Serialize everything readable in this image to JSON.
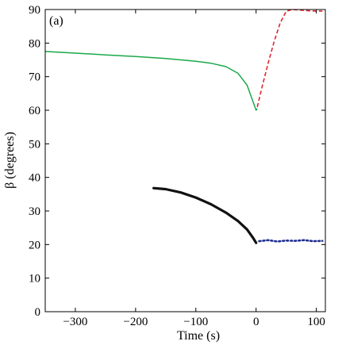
{
  "chart_data": {
    "type": "line",
    "panel_label": "(a)",
    "xlabel": "Time (s)",
    "ylabel": "β (degrees)",
    "xlim": [
      -350,
      115
    ],
    "ylim": [
      0,
      90
    ],
    "xticks": [
      -300,
      -200,
      -100,
      0,
      100
    ],
    "yticks": [
      0,
      10,
      20,
      30,
      40,
      50,
      60,
      70,
      80,
      90
    ],
    "grid": false,
    "series": [
      {
        "color": "#1aa84a",
        "style": "solid",
        "x": [
          -350,
          -300,
          -250,
          -200,
          -150,
          -100,
          -75,
          -50,
          -30,
          -15,
          -5,
          0,
          2
        ],
        "y": [
          77.5,
          77.0,
          76.5,
          76.0,
          75.4,
          74.6,
          74.0,
          73.0,
          71.0,
          67.5,
          62.5,
          60.0,
          60.5
        ]
      },
      {
        "color": "#e0262e",
        "style": "dashed",
        "x": [
          2,
          10,
          20,
          30,
          40,
          50,
          60,
          75,
          90,
          110
        ],
        "y": [
          61.0,
          67.0,
          74.0,
          80.5,
          86.0,
          89.5,
          90.0,
          89.8,
          89.6,
          89.5
        ]
      },
      {
        "color": "#111111",
        "style": "solid-thick",
        "x": [
          -170,
          -150,
          -125,
          -100,
          -75,
          -50,
          -30,
          -15,
          -5,
          0
        ],
        "y": [
          36.8,
          36.5,
          35.5,
          34.0,
          32.0,
          29.5,
          27.0,
          24.5,
          22.0,
          20.5
        ]
      },
      {
        "color": "#1f2f8f",
        "style": "dotted",
        "x": [
          5,
          20,
          35,
          50,
          65,
          80,
          95,
          110
        ],
        "y": [
          21.0,
          21.3,
          20.9,
          21.2,
          21.1,
          21.3,
          21.0,
          21.1
        ]
      }
    ]
  }
}
